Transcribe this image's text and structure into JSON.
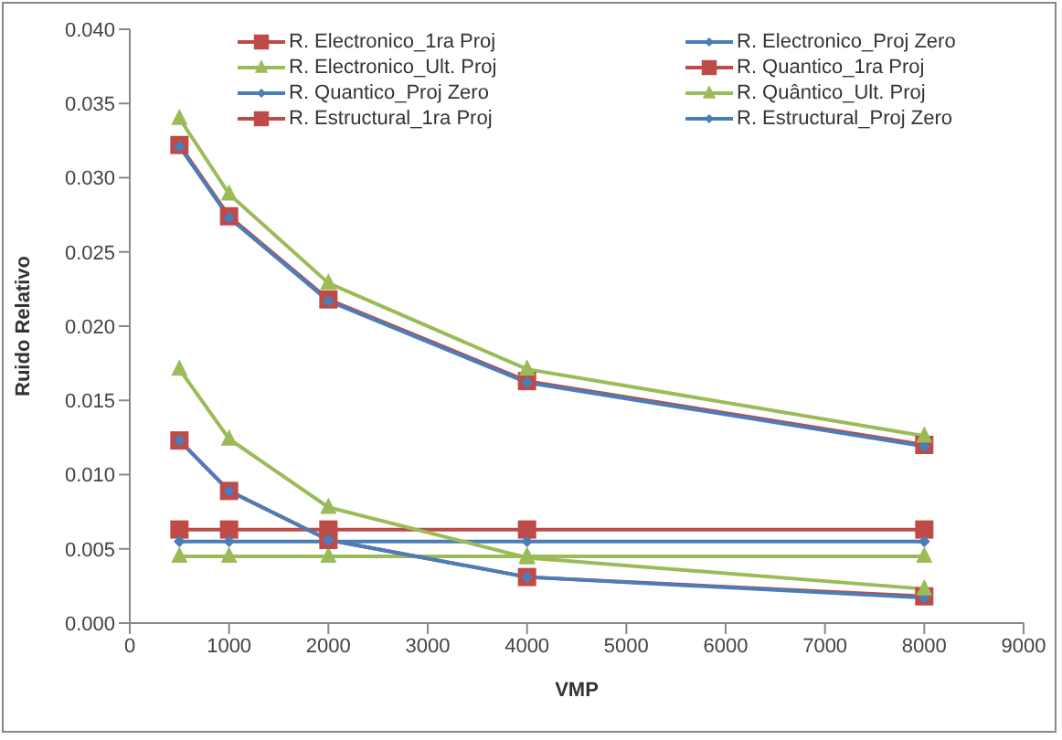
{
  "chart_data": {
    "type": "line",
    "xlabel": "VMP",
    "ylabel": "Ruido Relativo",
    "x": [
      500,
      1000,
      2000,
      4000,
      8000
    ],
    "xlim": [
      0,
      9000
    ],
    "xticks": [
      0,
      1000,
      2000,
      3000,
      4000,
      5000,
      6000,
      7000,
      8000,
      9000
    ],
    "ylim": [
      0,
      0.04
    ],
    "yticks": [
      {
        "value": 0,
        "label": "0.000"
      },
      {
        "value": 0.005,
        "label": "0.005"
      },
      {
        "value": 0.01,
        "label": "0.010"
      },
      {
        "value": 0.015,
        "label": "0.015"
      },
      {
        "value": 0.02,
        "label": "0.020"
      },
      {
        "value": 0.025,
        "label": "0.025"
      },
      {
        "value": 0.03,
        "label": "0.030"
      },
      {
        "value": 0.035,
        "label": "0.035"
      },
      {
        "value": 0.04,
        "label": "0.040"
      }
    ],
    "grid": false,
    "legend": "top",
    "line_style": "solid",
    "series": [
      {
        "name": "R. Electronico_1ra Proj",
        "color": "#be4b48",
        "marker": "square",
        "values": [
          0.0063,
          0.0063,
          0.0063,
          0.0063,
          0.0063
        ]
      },
      {
        "name": "R. Electronico_Proj Zero",
        "color": "#4a7ebb",
        "marker": "diamond",
        "values": [
          0.0055,
          0.0055,
          0.0055,
          0.0055,
          0.0055
        ]
      },
      {
        "name": "R. Electronico_Ult. Proj",
        "color": "#9bbb59",
        "marker": "triangle",
        "values": [
          0.0045,
          0.0045,
          0.0045,
          0.0045,
          0.0045
        ]
      },
      {
        "name": "R. Quantico_1ra Proj",
        "color": "#be4b48",
        "marker": "square",
        "values": [
          0.0123,
          0.0089,
          0.0056,
          0.0031,
          0.0018
        ]
      },
      {
        "name": "R. Quantico_Proj Zero",
        "color": "#4a7ebb",
        "marker": "diamond",
        "values": [
          0.0123,
          0.0089,
          0.0056,
          0.0031,
          0.0017
        ]
      },
      {
        "name": "R. Quântico_Ult. Proj",
        "color": "#9bbb59",
        "marker": "triangle",
        "values": [
          0.0171,
          0.0124,
          0.0078,
          0.0044,
          0.0023
        ]
      },
      {
        "name": "R. Estructural_1ra Proj",
        "color": "#be4b48",
        "marker": "square",
        "values": [
          0.0322,
          0.0274,
          0.0218,
          0.0163,
          0.012
        ]
      },
      {
        "name": "R. Estructural_Proj Zero",
        "color": "#4a7ebb",
        "marker": "diamond",
        "values": [
          0.0321,
          0.0273,
          0.0217,
          0.0162,
          0.0119
        ]
      },
      {
        "color": "#9bbb59",
        "marker": "triangle",
        "values": [
          0.034,
          0.0289,
          0.0229,
          0.0171,
          0.0126
        ]
      }
    ]
  }
}
